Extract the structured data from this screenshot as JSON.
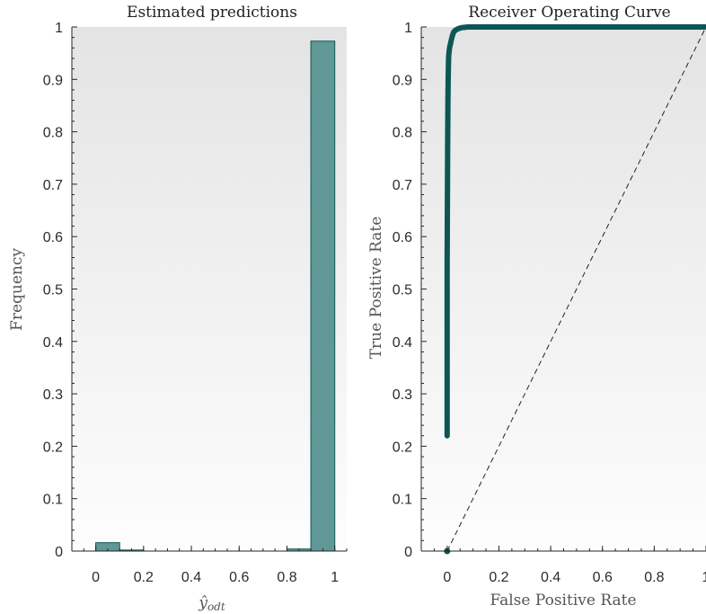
{
  "chart_data": [
    {
      "type": "bar",
      "title": "Estimated predictions",
      "xlabel": "ŷ",
      "xlabel_sub": "odt",
      "ylabel": "Frequency",
      "xlim": [
        -0.1,
        1.05
      ],
      "ylim": [
        0,
        1
      ],
      "xticks": [
        "0",
        "0.2",
        "0.4",
        "0.6",
        "0.8",
        "1"
      ],
      "yticks": [
        "0",
        "0.1",
        "0.2",
        "0.3",
        "0.4",
        "0.5",
        "0.6",
        "0.7",
        "0.8",
        "0.9",
        "1"
      ],
      "bins": [
        {
          "x0": 0.0,
          "x1": 0.1,
          "value": 0.016
        },
        {
          "x0": 0.1,
          "x1": 0.2,
          "value": 0.002
        },
        {
          "x0": 0.8,
          "x1": 0.9,
          "value": 0.004
        },
        {
          "x0": 0.9,
          "x1": 1.0,
          "value": 0.973
        }
      ],
      "bar_color": "#5f9896",
      "edge_color": "#0c5754",
      "grid": false
    },
    {
      "type": "line",
      "title": "Receiver Operating Curve",
      "xlabel": "False Positive Rate",
      "ylabel": "True Positive Rate",
      "xlim": [
        -0.1,
        1.0
      ],
      "ylim": [
        0,
        1
      ],
      "xticks": [
        "0",
        "0.2",
        "0.4",
        "0.6",
        "0.8",
        "1"
      ],
      "yticks": [
        "0",
        "0.1",
        "0.2",
        "0.3",
        "0.4",
        "0.5",
        "0.6",
        "0.7",
        "0.8",
        "0.9",
        "1"
      ],
      "series": [
        {
          "style": "roc",
          "color": "#0c5754",
          "x": [
            0,
            0,
            0.002,
            0.003,
            0.004,
            0.005,
            0.006,
            0.008,
            0.01,
            0.013,
            0.016,
            0.02,
            0.025,
            0.03,
            0.04,
            0.05,
            0.06,
            0.08,
            0.1,
            0.2,
            0.3,
            0.4,
            0.5,
            0.6,
            0.7,
            0.8,
            0.9,
            1.0
          ],
          "y": [
            0.22,
            0.55,
            0.78,
            0.86,
            0.9,
            0.93,
            0.945,
            0.955,
            0.962,
            0.968,
            0.975,
            0.983,
            0.99,
            0.993,
            0.996,
            0.998,
            0.999,
            1.0,
            1.0,
            1.0,
            1.0,
            1.0,
            1.0,
            1.0,
            1.0,
            1.0,
            1.0,
            1.0
          ]
        },
        {
          "style": "chance",
          "color": "#222222",
          "x": [
            0,
            1
          ],
          "y": [
            0,
            1
          ]
        }
      ],
      "points": [
        {
          "x": 0,
          "y": 0
        }
      ],
      "grid": false
    }
  ]
}
